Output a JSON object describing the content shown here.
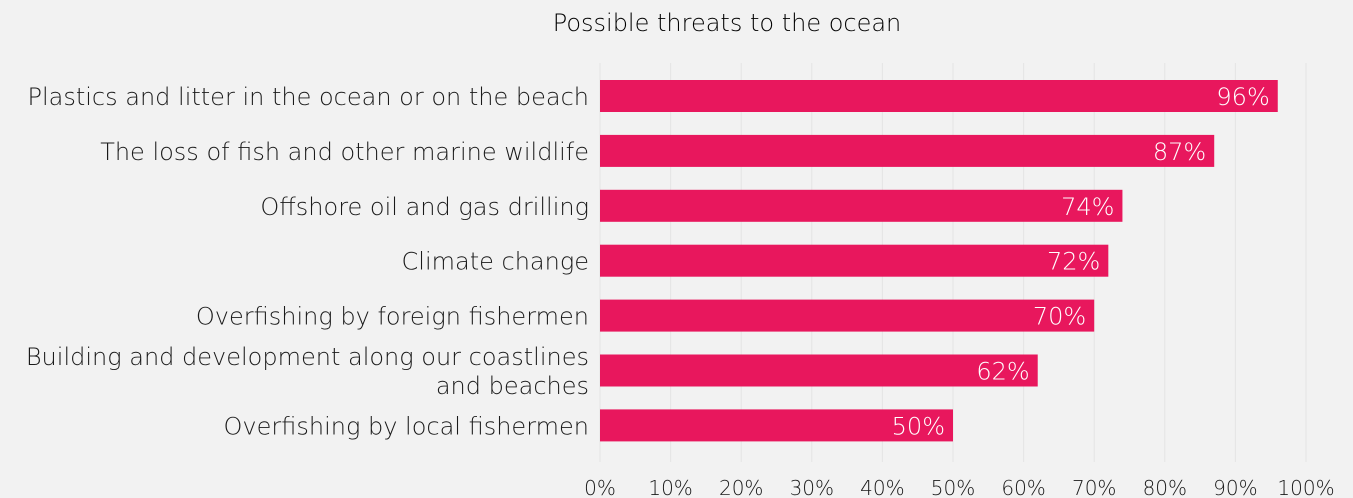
{
  "chart_data": {
    "type": "bar",
    "orientation": "horizontal",
    "title": "Possible threats to the ocean",
    "xlabel": "",
    "ylabel": "",
    "categories": [
      [
        "Plastics and litter in the ocean or on the beach"
      ],
      [
        "The loss of fish and other marine wildlife"
      ],
      [
        "Offshore oil and gas drilling"
      ],
      [
        "Climate change"
      ],
      [
        "Overfishing by foreign fishermen"
      ],
      [
        "Building and development along our coastlines",
        "and beaches"
      ],
      [
        "Overfishing by local fishermen"
      ]
    ],
    "values": [
      96,
      87,
      74,
      72,
      70,
      62,
      50
    ],
    "data_labels": [
      "96%",
      "87%",
      "74%",
      "72%",
      "70%",
      "62%",
      "50%"
    ],
    "xlim": [
      0,
      100
    ],
    "x_ticks": [
      0,
      10,
      20,
      30,
      40,
      50,
      60,
      70,
      80,
      90,
      100
    ],
    "x_tick_labels": [
      "0%",
      "10%",
      "20%",
      "30%",
      "40%",
      "50%",
      "60%",
      "70%",
      "80%",
      "90%",
      "100%"
    ],
    "grid": true,
    "legend": "none",
    "colors": {
      "bar": "#e8175d",
      "background": "#f2f2f2",
      "grid": "#e4e4e4",
      "text": "#1a1a1a",
      "label_on_bar": "#ffffff"
    }
  }
}
